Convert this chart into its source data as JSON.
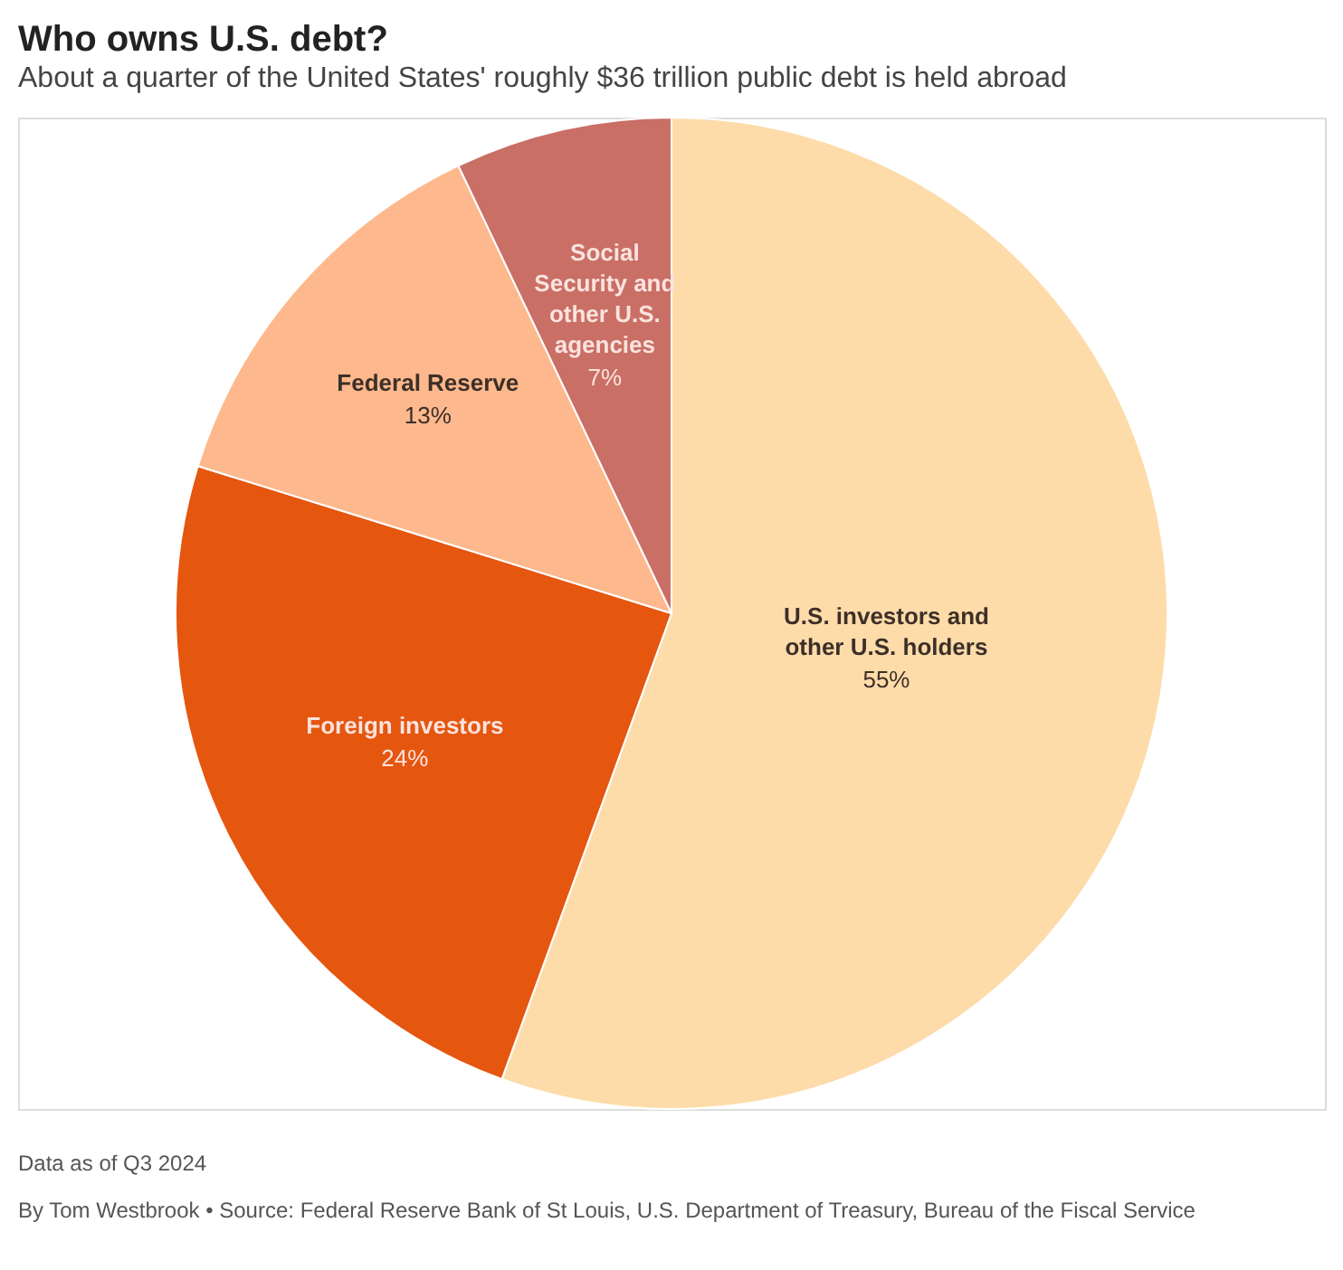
{
  "chart_data": {
    "type": "pie",
    "title": "Who owns U.S. debt?",
    "subtitle": "About a quarter of the United States' roughly $36 trillion public debt is held abroad",
    "categories": [
      "U.S. investors and\nother U.S. holders",
      "Foreign investors",
      "Federal Reserve",
      "Social\nSecurity and\nother U.S.\nagencies"
    ],
    "values": [
      55,
      24,
      13,
      7
    ],
    "value_labels": [
      "55%",
      "24%",
      "13%",
      "7%"
    ],
    "colors": [
      "#fddcaa",
      "#e5560f",
      "#fdb98d",
      "#c96f66"
    ],
    "annotations": [
      "Data as of Q3 2024",
      "By Tom Westbrook • Source: Federal Reserve Bank of St Louis, U.S. Department of Treasury, Bureau of the Fiscal Service"
    ],
    "legend": false
  }
}
